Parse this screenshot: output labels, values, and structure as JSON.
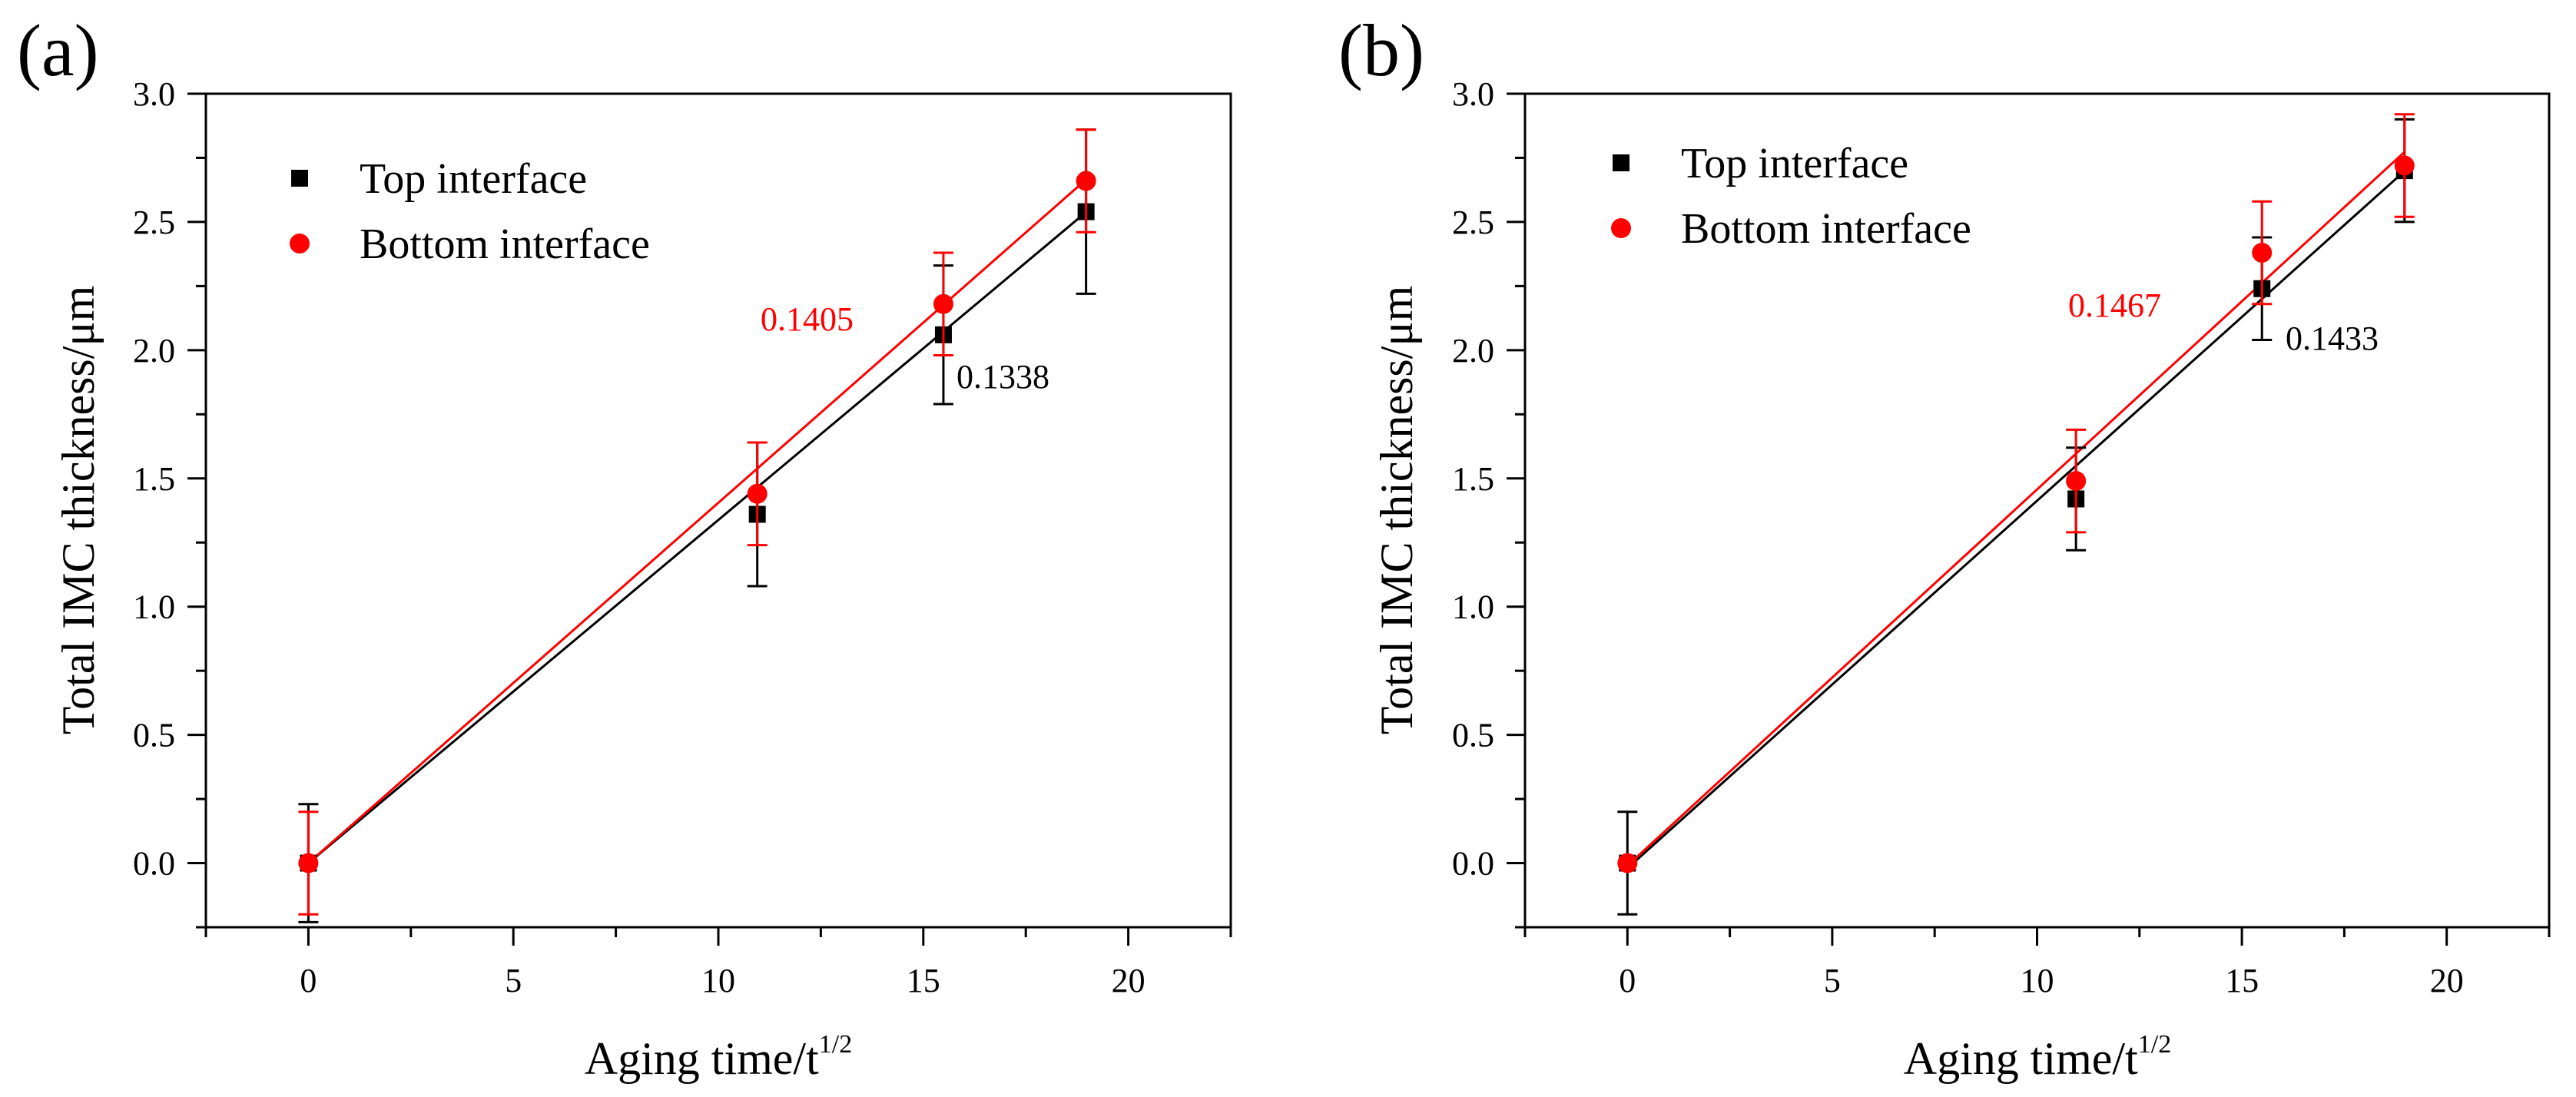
{
  "chart_data": [
    {
      "type": "scatter",
      "panel_label": "(a)",
      "xlabel": "Aging time/t",
      "xlabel_sup": "1/2",
      "ylabel": "Total IMC thickness/μm",
      "xlim": [
        -2.5,
        22.5
      ],
      "ylim": [
        -0.25,
        3.0
      ],
      "xticks": [
        0,
        5,
        10,
        15,
        20
      ],
      "xtick_labels": [
        "0",
        "5",
        "10",
        "15",
        "20"
      ],
      "yticks": [
        0.0,
        0.5,
        1.0,
        1.5,
        2.0,
        2.5,
        3.0
      ],
      "ytick_labels": [
        "0.0",
        "0.5",
        "1.0",
        "1.5",
        "2.0",
        "2.5",
        "3.0"
      ],
      "legend": {
        "position": "top-left",
        "entries": [
          "Top interface",
          "Bottom interface"
        ]
      },
      "series": [
        {
          "name": "Top interface",
          "marker": "square",
          "color": "#000000",
          "x": [
            0,
            10.95,
            15.49,
            18.97
          ],
          "y": [
            0.0,
            1.36,
            2.06,
            2.54
          ],
          "err": [
            0.23,
            0.28,
            0.27,
            0.32
          ],
          "fit": {
            "slope": 0.1338,
            "intercept": 0.0,
            "x0": 0,
            "x1": 18.97,
            "label": "0.1338"
          }
        },
        {
          "name": "Bottom interface",
          "marker": "circle",
          "color": "#ff0000",
          "x": [
            0,
            10.95,
            15.49,
            18.97
          ],
          "y": [
            0.0,
            1.44,
            2.18,
            2.66
          ],
          "err": [
            0.2,
            0.2,
            0.2,
            0.2
          ],
          "fit": {
            "slope": 0.1405,
            "intercept": 0.0,
            "x0": 0,
            "x1": 18.97,
            "label": "0.1405"
          }
        }
      ]
    },
    {
      "type": "scatter",
      "panel_label": "(b)",
      "xlabel": "Aging time/t",
      "xlabel_sup": "1/2",
      "ylabel": "Total IMC thickness/μm",
      "xlim": [
        -2.5,
        22.5
      ],
      "ylim": [
        -0.25,
        3.0
      ],
      "xticks": [
        0,
        5,
        10,
        15,
        20
      ],
      "xtick_labels": [
        "0",
        "5",
        "10",
        "15",
        "20"
      ],
      "yticks": [
        0.0,
        0.5,
        1.0,
        1.5,
        2.0,
        2.5,
        3.0
      ],
      "ytick_labels": [
        "0.0",
        "0.5",
        "1.0",
        "1.5",
        "2.0",
        "2.5",
        "3.0"
      ],
      "legend": {
        "position": "top-left",
        "entries": [
          "Top interface",
          "Bottom interface"
        ]
      },
      "series": [
        {
          "name": "Top interface",
          "marker": "square",
          "color": "#000000",
          "x": [
            0,
            10.95,
            15.49,
            18.97
          ],
          "y": [
            0.0,
            1.42,
            2.24,
            2.7
          ],
          "err": [
            0.2,
            0.2,
            0.2,
            0.2
          ],
          "fit": {
            "slope": 0.1433,
            "intercept": -0.02,
            "x0": 0,
            "x1": 18.97,
            "label": "0.1433"
          }
        },
        {
          "name": "Bottom interface",
          "marker": "circle",
          "color": "#ff0000",
          "x": [
            0,
            10.95,
            15.49,
            18.97
          ],
          "y": [
            0.0,
            1.49,
            2.38,
            2.72
          ],
          "err": [
            0.0,
            0.2,
            0.2,
            0.2
          ],
          "fit": {
            "slope": 0.1467,
            "intercept": -0.01,
            "x0": 0,
            "x1": 18.97,
            "label": "0.1467"
          }
        }
      ]
    }
  ]
}
